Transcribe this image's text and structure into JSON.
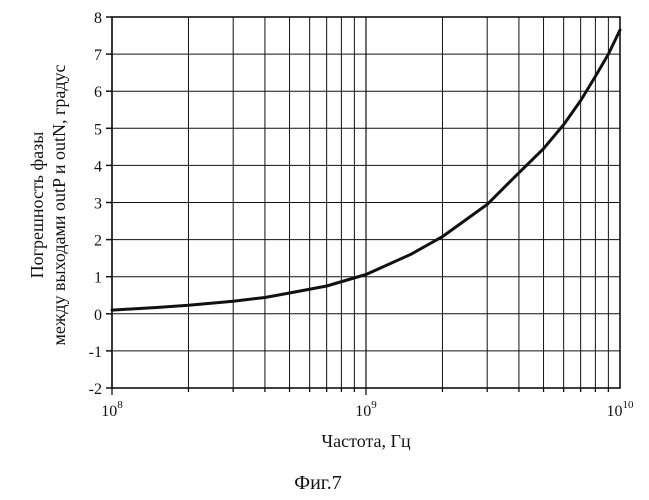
{
  "chart_data": {
    "type": "line",
    "x_scale": "log",
    "grid": true,
    "xlabel": "Частота, Гц",
    "ylabel_lines": [
      "Погрешность фазы",
      "между выходами outP и outN, градус"
    ],
    "xlim": [
      100000000,
      10000000000
    ],
    "ylim": [
      -2,
      8
    ],
    "x_ticks": [
      {
        "value": 100000000,
        "base": "10",
        "exp": "8"
      },
      {
        "value": 1000000000,
        "base": "10",
        "exp": "9"
      },
      {
        "value": 10000000000,
        "base": "10",
        "exp": "10"
      }
    ],
    "y_ticks": [
      "-2",
      "-1",
      "0",
      "1",
      "2",
      "3",
      "4",
      "5",
      "6",
      "7",
      "8"
    ],
    "series": [
      {
        "x": [
          100000000,
          150000000,
          200000000,
          300000000,
          400000000,
          500000000,
          700000000,
          1000000000,
          1500000000,
          2000000000,
          3000000000,
          4000000000,
          5000000000,
          6000000000,
          7000000000,
          8000000000,
          9000000000,
          10000000000
        ],
        "y": [
          0.1,
          0.17,
          0.23,
          0.34,
          0.44,
          0.56,
          0.75,
          1.06,
          1.6,
          2.08,
          2.95,
          3.8,
          4.45,
          5.1,
          5.75,
          6.4,
          7.0,
          7.65
        ]
      }
    ]
  },
  "caption": "Фиг.7"
}
